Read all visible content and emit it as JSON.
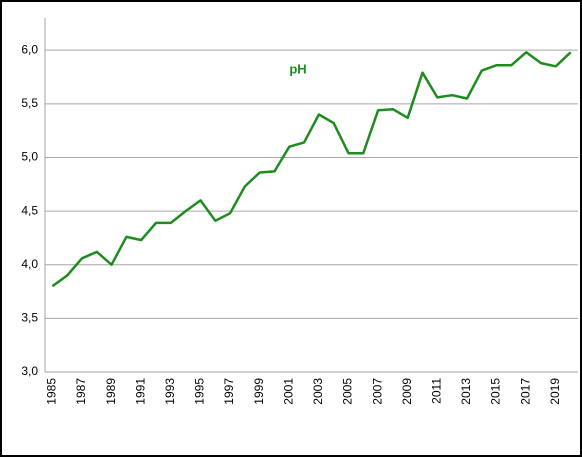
{
  "chart_data": {
    "type": "line",
    "title": "pH",
    "categories": [
      "1985",
      null,
      "1987",
      null,
      "1989",
      null,
      "1991",
      null,
      "1993",
      null,
      "1995",
      null,
      "1997",
      null,
      "1999",
      null,
      "2001",
      null,
      "2003",
      null,
      "2005",
      null,
      "2007",
      null,
      "2009",
      null,
      "2011",
      null,
      "2013",
      null,
      "2015",
      null,
      "2017",
      null,
      "2019",
      null
    ],
    "series": [
      {
        "name": "pH",
        "color": "#1e8c1e",
        "values": [
          3.8,
          3.9,
          4.06,
          4.12,
          4.0,
          4.26,
          4.23,
          4.39,
          4.39,
          4.5,
          4.6,
          4.41,
          4.48,
          4.73,
          4.86,
          4.87,
          5.1,
          5.14,
          5.4,
          5.32,
          5.04,
          5.04,
          5.44,
          5.45,
          5.37,
          5.79,
          5.56,
          5.58,
          5.55,
          5.81,
          5.86,
          5.86,
          5.98,
          5.88,
          5.85,
          5.98
        ]
      }
    ],
    "ylim": [
      3.0,
      6.3
    ],
    "yticks": [
      {
        "value": 3.0,
        "label": "3,0"
      },
      {
        "value": 3.5,
        "label": "3,5"
      },
      {
        "value": 4.0,
        "label": "4,0"
      },
      {
        "value": 4.5,
        "label": "4,5"
      },
      {
        "value": 5.0,
        "label": "5,0"
      },
      {
        "value": 5.5,
        "label": "5,5"
      },
      {
        "value": 6.0,
        "label": "6,0"
      }
    ],
    "grid": true
  }
}
